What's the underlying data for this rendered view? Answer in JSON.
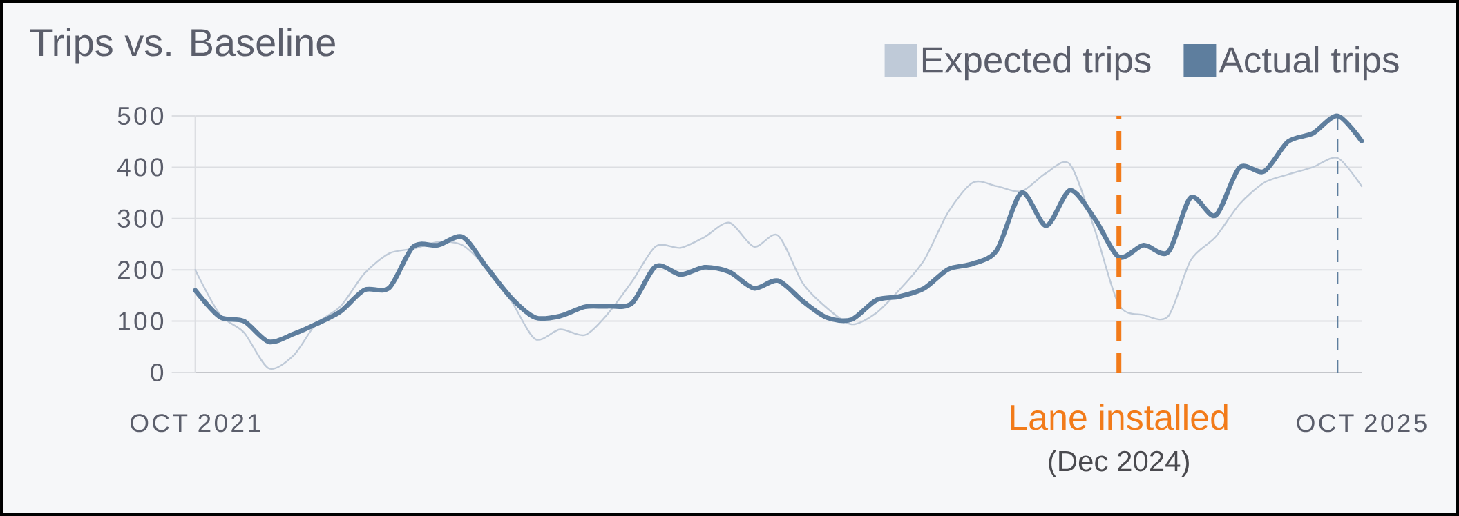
{
  "chart_data": {
    "type": "line",
    "title": "Trips vs. Baseline",
    "x": [
      "2021-10",
      "2021-11",
      "2021-12",
      "2022-01",
      "2022-02",
      "2022-03",
      "2022-04",
      "2022-05",
      "2022-06",
      "2022-07",
      "2022-08",
      "2022-09",
      "2022-10",
      "2022-11",
      "2022-12",
      "2023-01",
      "2023-02",
      "2023-03",
      "2023-04",
      "2023-05",
      "2023-06",
      "2023-07",
      "2023-08",
      "2023-09",
      "2023-10",
      "2023-11",
      "2023-12",
      "2024-01",
      "2024-02",
      "2024-03",
      "2024-04",
      "2024-05",
      "2024-06",
      "2024-07",
      "2024-08",
      "2024-09",
      "2024-10",
      "2024-11",
      "2024-12",
      "2025-01",
      "2025-02",
      "2025-03",
      "2025-04",
      "2025-05",
      "2025-06",
      "2025-07",
      "2025-08",
      "2025-09",
      "2025-10"
    ],
    "series": [
      {
        "name": "Expected trips",
        "color": "#bfcad8",
        "values": [
          200,
          113,
          78,
          8,
          33,
          94,
          129,
          193,
          232,
          241,
          254,
          248,
          203,
          139,
          65,
          84,
          73,
          113,
          177,
          246,
          243,
          264,
          292,
          245,
          267,
          174,
          126,
          94,
          116,
          161,
          219,
          312,
          370,
          363,
          353,
          389,
          405,
          277,
          132,
          112,
          110,
          219,
          264,
          328,
          370,
          386,
          400,
          418,
          363
        ]
      },
      {
        "name": "Actual trips",
        "color": "#5e7e9e",
        "values": [
          160,
          108,
          100,
          60,
          75,
          94,
          119,
          161,
          165,
          245,
          248,
          264,
          205,
          145,
          107,
          110,
          128,
          129,
          135,
          207,
          191,
          205,
          196,
          164,
          179,
          139,
          107,
          103,
          141,
          148,
          164,
          201,
          212,
          238,
          350,
          286,
          355,
          299,
          225,
          248,
          235,
          341,
          306,
          399,
          392,
          450,
          466,
          500,
          451
        ]
      }
    ],
    "xlim": [
      "2021-10",
      "2025-10"
    ],
    "ylim": [
      0,
      500
    ],
    "xticks": [
      {
        "value": "2021-10",
        "label": "OCT 2021"
      },
      {
        "value": "2025-10",
        "label": "OCT 2025"
      }
    ],
    "yticks": [
      0,
      100,
      200,
      300,
      400,
      500
    ],
    "grid": "y",
    "legend": "top right",
    "ref_lines": [
      {
        "axis": "x",
        "value": "2024-12",
        "label": "Lane installed",
        "color": "#f27b1a",
        "line_style": "dashed"
      },
      {
        "axis": "x",
        "value": "2025-09",
        "color": "#5e7e9e",
        "line_style": "dashed"
      }
    ],
    "annotations": [
      "(Dec 2024)"
    ]
  }
}
